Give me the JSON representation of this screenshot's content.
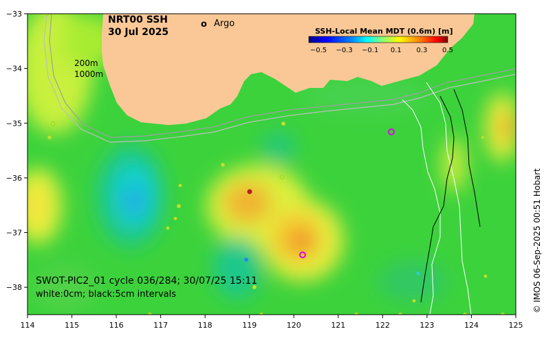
{
  "title": {
    "product": "NRT00 SSH",
    "date": "30 Jul 2025"
  },
  "legend": {
    "marker_symbol": "o",
    "marker_label": "Argo",
    "marker_color": "#e600e6"
  },
  "colorbar": {
    "title": "SSH-Local Mean MDT (0.6m) [m]",
    "tick_labels": [
      "−0.5",
      "−0.3",
      "−0.1",
      "0.1",
      "0.3",
      "0.5"
    ],
    "colors": [
      "#00007f",
      "#0000ff",
      "#007fff",
      "#00ffff",
      "#7fff7f",
      "#ffff00",
      "#ff7f00",
      "#ff0000",
      "#7f0000"
    ]
  },
  "depth_labels": {
    "shallow": "200m",
    "deep": "1000m"
  },
  "swot_info": {
    "line1": "SWOT-PIC2_01 cycle 036/284; 30/07/25 15:11",
    "line2": "white:0cm; black:5cm intervals"
  },
  "credit": "© IMOS 06-Sep-2025 00:51 Hobart",
  "axes": {
    "x_tick_labels": [
      "114",
      "115",
      "116",
      "117",
      "118",
      "119",
      "120",
      "121",
      "122",
      "123",
      "124",
      "125"
    ],
    "y_tick_labels": [
      "−33",
      "−34",
      "−35",
      "−36",
      "−37",
      "−38"
    ],
    "lon_range": [
      114,
      125
    ],
    "lat_range": [
      -38.5,
      -33
    ]
  },
  "colors": {
    "land": "#f9c896",
    "background_field": "#3cd23c",
    "contour_200m": "#a0a0a0",
    "contour_1000m": "#bebebe",
    "swot_contour_0cm": "#ffffff",
    "swot_contour_5cm": "#000000"
  }
}
